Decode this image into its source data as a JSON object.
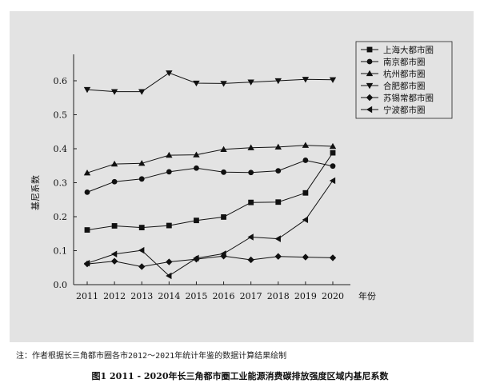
{
  "chart_data": {
    "type": "line",
    "title": "",
    "xlabel": "年份",
    "ylabel": "基尼系数",
    "x": [
      "2011",
      "2012",
      "2013",
      "2014",
      "2015",
      "2016",
      "2017",
      "2018",
      "2019",
      "2020"
    ],
    "ylim": [
      0,
      0.6
    ],
    "yticks": [
      "0.0",
      "0.1",
      "0.2",
      "0.3",
      "0.4",
      "0.5",
      "0.6"
    ],
    "grid": false,
    "legend_position": "top-right",
    "series": [
      {
        "name": "上海大都市圈",
        "marker": "square",
        "values": [
          0.161,
          0.173,
          0.168,
          0.174,
          0.189,
          0.199,
          0.242,
          0.243,
          0.27,
          0.388
        ]
      },
      {
        "name": "南京都市圈",
        "marker": "circle",
        "values": [
          0.272,
          0.303,
          0.311,
          0.332,
          0.343,
          0.331,
          0.33,
          0.335,
          0.366,
          0.349
        ]
      },
      {
        "name": "杭州都市圈",
        "marker": "triangle-up",
        "values": [
          0.329,
          0.355,
          0.357,
          0.381,
          0.382,
          0.398,
          0.403,
          0.405,
          0.41,
          0.407
        ]
      },
      {
        "name": "合肥都市圈",
        "marker": "triangle-down",
        "values": [
          0.574,
          0.568,
          0.568,
          0.623,
          0.593,
          0.592,
          0.596,
          0.6,
          0.604,
          0.603
        ]
      },
      {
        "name": "苏锡常都市圈",
        "marker": "diamond",
        "values": [
          0.061,
          0.069,
          0.053,
          0.067,
          0.075,
          0.084,
          0.073,
          0.083,
          0.081,
          0.079
        ]
      },
      {
        "name": "宁波都市圈",
        "marker": "triangle-left",
        "values": [
          0.063,
          0.09,
          0.101,
          0.026,
          0.078,
          0.091,
          0.14,
          0.135,
          0.191,
          0.306
        ]
      }
    ]
  },
  "footnote": "注：作者根据长三角都市圈各市2012～2021年统计年鉴的数据计算结果绘制",
  "caption": "图1  2011 - 2020年长三角都市圈工业能源消费碳排放强度区域内基尼系数"
}
